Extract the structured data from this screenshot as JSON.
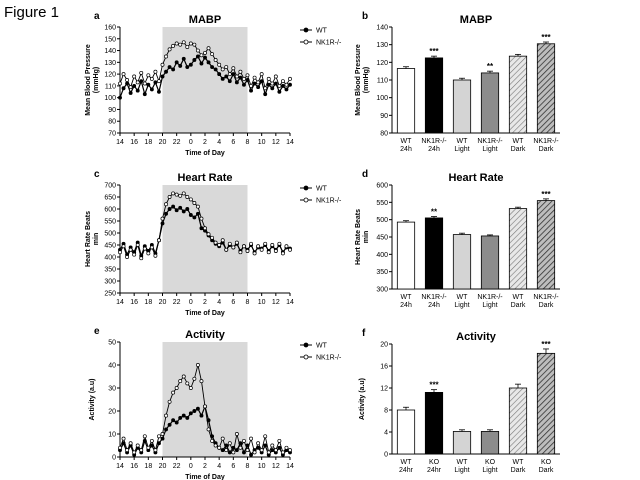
{
  "figure_label": "Figure 1",
  "chart_data": [
    {
      "letter": "a",
      "type": "line",
      "title": "MABP",
      "xlabel": "Time of Day",
      "ylabel": "Mean Blood Pressure (mmHg)",
      "ylim": [
        70,
        160
      ],
      "yticks": [
        70,
        80,
        90,
        100,
        110,
        120,
        130,
        140,
        150,
        160
      ],
      "xticks": [
        "14",
        "16",
        "18",
        "20",
        "22",
        "0",
        "2",
        "4",
        "6",
        "8",
        "10",
        "12",
        "14"
      ],
      "dark_period": [
        6,
        18
      ],
      "legend_placement": "top-right",
      "x": [
        0,
        0.5,
        1,
        1.5,
        2,
        2.5,
        3,
        3.5,
        4,
        4.5,
        5,
        5.5,
        6,
        6.5,
        7,
        7.5,
        8,
        8.5,
        9,
        9.5,
        10,
        10.5,
        11,
        11.5,
        12,
        12.5,
        13,
        13.5,
        14,
        14.5,
        15,
        15.5,
        16,
        16.5,
        17,
        17.5,
        18,
        18.5,
        19,
        19.5,
        20,
        20.5,
        21,
        21.5,
        22,
        22.5,
        23,
        23.5,
        24
      ],
      "series": [
        {
          "name": "WT",
          "marker": "filled",
          "values": [
            100,
            108,
            112,
            104,
            110,
            106,
            114,
            103,
            111,
            107,
            113,
            105,
            118,
            122,
            126,
            124,
            130,
            127,
            133,
            126,
            128,
            132,
            135,
            129,
            134,
            130,
            126,
            124,
            120,
            116,
            118,
            114,
            120,
            113,
            117,
            111,
            115,
            106,
            112,
            109,
            114,
            103,
            111,
            108,
            112,
            105,
            110,
            107,
            111
          ]
        },
        {
          "name": "NK1R-/-",
          "marker": "open",
          "values": [
            112,
            120,
            115,
            109,
            118,
            113,
            121,
            112,
            119,
            116,
            122,
            114,
            128,
            135,
            141,
            144,
            146,
            145,
            147,
            143,
            146,
            145,
            140,
            136,
            138,
            142,
            137,
            132,
            128,
            124,
            126,
            120,
            125,
            118,
            122,
            116,
            119,
            110,
            117,
            113,
            120,
            108,
            116,
            112,
            118,
            110,
            114,
            111,
            116
          ]
        }
      ]
    },
    {
      "letter": "b",
      "type": "bar",
      "title": "MABP",
      "ylabel": "Mean Blood Pressure (mmHg)",
      "ylim": [
        80,
        140
      ],
      "yticks": [
        80,
        90,
        100,
        110,
        120,
        130,
        140
      ],
      "categories": [
        [
          "WT",
          "24h"
        ],
        [
          "NK1R-/-",
          "24h"
        ],
        [
          "WT",
          "Light"
        ],
        [
          "NK1R-/-",
          "Light"
        ],
        [
          "WT",
          "Dark"
        ],
        [
          "NK1R-/-",
          "Dark"
        ]
      ],
      "values": [
        116.5,
        122.5,
        110,
        114,
        123.5,
        130.5
      ],
      "errors": [
        1,
        1,
        1,
        1,
        1,
        1
      ],
      "significance": [
        "",
        "***",
        "",
        "**",
        "",
        "***"
      ],
      "fills": [
        "white",
        "black",
        "lightgray",
        "gray",
        "hatch-light",
        "hatch-dark"
      ]
    },
    {
      "letter": "c",
      "type": "line",
      "title": "Heart Rate",
      "xlabel": "Time of Day",
      "ylabel": "Heart Rate Beats min",
      "ylim": [
        250,
        700
      ],
      "yticks": [
        250,
        300,
        350,
        400,
        450,
        500,
        550,
        600,
        650,
        700
      ],
      "xticks": [
        "14",
        "16",
        "18",
        "20",
        "22",
        "0",
        "2",
        "4",
        "6",
        "8",
        "10",
        "12",
        "14"
      ],
      "dark_period": [
        6,
        18
      ],
      "legend_placement": "top-right",
      "x": [
        0,
        0.5,
        1,
        1.5,
        2,
        2.5,
        3,
        3.5,
        4,
        4.5,
        5,
        5.5,
        6,
        6.5,
        7,
        7.5,
        8,
        8.5,
        9,
        9.5,
        10,
        10.5,
        11,
        11.5,
        12,
        12.5,
        13,
        13.5,
        14,
        14.5,
        15,
        15.5,
        16,
        16.5,
        17,
        17.5,
        18,
        18.5,
        19,
        19.5,
        20,
        20.5,
        21,
        21.5,
        22,
        22.5,
        23,
        23.5,
        24
      ],
      "series": [
        {
          "name": "WT",
          "marker": "filled",
          "values": [
            430,
            455,
            410,
            440,
            420,
            460,
            405,
            445,
            425,
            450,
            415,
            470,
            540,
            580,
            600,
            610,
            595,
            605,
            590,
            600,
            575,
            565,
            580,
            520,
            510,
            490,
            470,
            455,
            445,
            460,
            430,
            450,
            440,
            455,
            425,
            445,
            430,
            450,
            420,
            440,
            435,
            450,
            425,
            445,
            430,
            450,
            420,
            440,
            435
          ]
        },
        {
          "name": "NK1R-/-",
          "marker": "open",
          "values": [
            420,
            445,
            400,
            430,
            410,
            450,
            395,
            435,
            415,
            440,
            405,
            470,
            560,
            620,
            650,
            665,
            660,
            655,
            665,
            650,
            640,
            625,
            610,
            560,
            520,
            495,
            480,
            460,
            450,
            470,
            430,
            455,
            440,
            460,
            420,
            445,
            425,
            455,
            415,
            445,
            430,
            455,
            420,
            450,
            425,
            455,
            415,
            445,
            430
          ]
        }
      ]
    },
    {
      "letter": "d",
      "type": "bar",
      "title": "Heart Rate",
      "ylabel": "Heart Rate Beats min",
      "ylim": [
        300,
        600
      ],
      "yticks": [
        300,
        350,
        400,
        450,
        500,
        550,
        600
      ],
      "categories": [
        [
          "WT",
          "24h"
        ],
        [
          "NK1R-/-",
          "24h"
        ],
        [
          "WT",
          "Light"
        ],
        [
          "NK1R-/-",
          "Light"
        ],
        [
          "WT",
          "Dark"
        ],
        [
          "NK1R-/-",
          "Dark"
        ]
      ],
      "values": [
        493,
        505,
        457,
        453,
        532,
        555
      ],
      "errors": [
        4,
        4,
        4,
        3,
        4,
        5
      ],
      "significance": [
        "",
        "**",
        "",
        "",
        "",
        "***"
      ],
      "fills": [
        "white",
        "black",
        "lightgray",
        "gray",
        "hatch-light",
        "hatch-dark"
      ]
    },
    {
      "letter": "e",
      "type": "line",
      "title": "Activity",
      "xlabel": "Time of Day",
      "ylabel": "Activity (a.u)",
      "ylim": [
        0,
        50
      ],
      "yticks": [
        0,
        10,
        20,
        30,
        40,
        50
      ],
      "xticks": [
        "14",
        "16",
        "18",
        "20",
        "22",
        "0",
        "2",
        "4",
        "6",
        "8",
        "10",
        "12",
        "14"
      ],
      "dark_period": [
        6,
        18
      ],
      "legend_placement": "top-right",
      "x": [
        0,
        0.5,
        1,
        1.5,
        2,
        2.5,
        3,
        3.5,
        4,
        4.5,
        5,
        5.5,
        6,
        6.5,
        7,
        7.5,
        8,
        8.5,
        9,
        9.5,
        10,
        10.5,
        11,
        11.5,
        12,
        12.5,
        13,
        13.5,
        14,
        14.5,
        15,
        15.5,
        16,
        16.5,
        17,
        17.5,
        18,
        18.5,
        19,
        19.5,
        20,
        20.5,
        21,
        21.5,
        22,
        22.5,
        23,
        23.5,
        24
      ],
      "series": [
        {
          "name": "WT",
          "marker": "filled",
          "values": [
            3,
            6,
            2,
            5,
            1,
            4,
            2,
            7,
            3,
            5,
            2,
            6,
            8,
            12,
            14,
            16,
            15,
            17,
            18,
            17,
            19,
            20,
            21,
            18,
            22,
            16,
            9,
            6,
            4,
            3,
            5,
            2,
            4,
            3,
            6,
            2,
            5,
            1,
            3,
            4,
            2,
            5,
            1,
            3,
            2,
            4,
            1,
            3,
            2
          ]
        },
        {
          "name": "NK1R-/-",
          "marker": "open",
          "values": [
            4,
            8,
            3,
            6,
            2,
            5,
            3,
            9,
            4,
            7,
            3,
            9,
            10,
            18,
            24,
            28,
            30,
            33,
            35,
            32,
            30,
            34,
            40,
            33,
            22,
            12,
            7,
            5,
            4,
            8,
            3,
            6,
            2,
            10,
            4,
            7,
            3,
            8,
            2,
            6,
            3,
            9,
            2,
            5,
            3,
            7,
            2,
            4,
            3
          ]
        }
      ]
    },
    {
      "letter": "f",
      "type": "bar",
      "title": "Activity",
      "ylabel": "Activity (a.u)",
      "ylim": [
        0,
        20
      ],
      "yticks": [
        0,
        4,
        8,
        12,
        16,
        20
      ],
      "categories": [
        [
          "WT",
          "24hr"
        ],
        [
          "KO",
          "24hr"
        ],
        [
          "WT",
          "Light"
        ],
        [
          "KO",
          "Light"
        ],
        [
          "WT",
          "Dark"
        ],
        [
          "KO",
          "Dark"
        ]
      ],
      "values": [
        8,
        11.2,
        4.1,
        4.1,
        12,
        18.3
      ],
      "errors": [
        0.5,
        0.5,
        0.3,
        0.3,
        0.7,
        0.8
      ],
      "significance": [
        "",
        "***",
        "",
        "",
        "",
        "***"
      ],
      "fills": [
        "white",
        "black",
        "lightgray",
        "gray",
        "hatch-light",
        "hatch-dark"
      ]
    }
  ]
}
